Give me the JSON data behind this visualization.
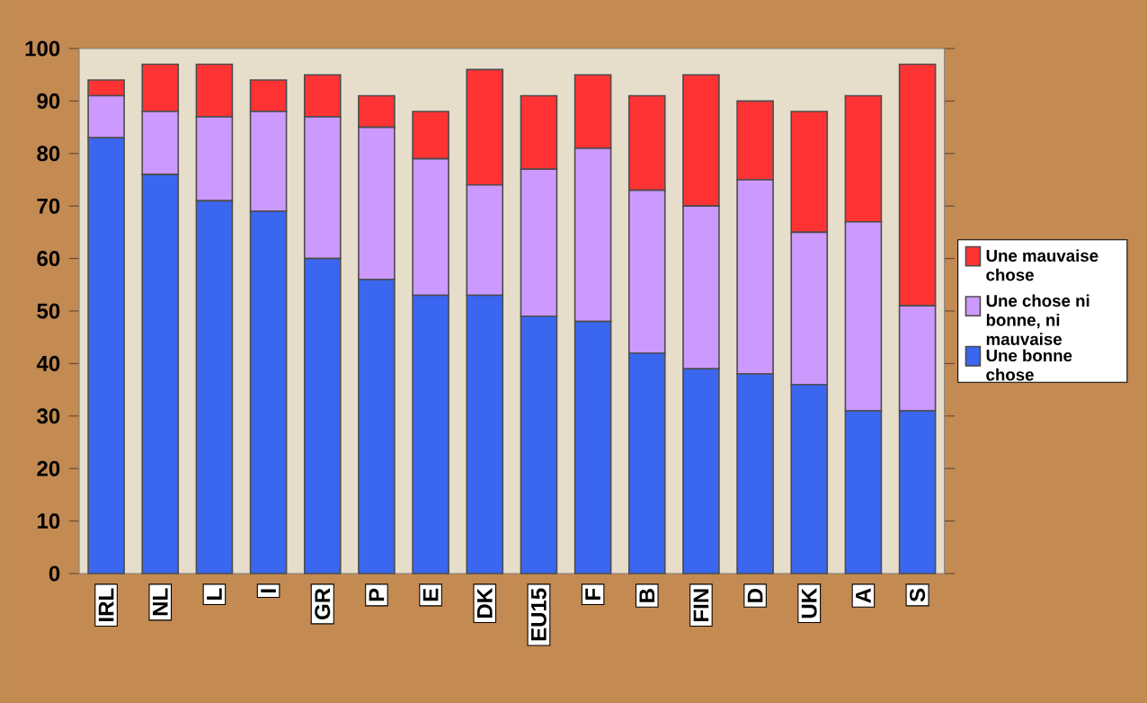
{
  "chart_data": {
    "type": "bar",
    "stacked": true,
    "categories": [
      "IRL",
      "NL",
      "L",
      "I",
      "GR",
      "P",
      "E",
      "DK",
      "EU15",
      "F",
      "B",
      "FIN",
      "D",
      "UK",
      "A",
      "S"
    ],
    "series": [
      {
        "name": "Une bonne chose",
        "color": "#3a66f0",
        "values": [
          83,
          76,
          71,
          69,
          60,
          56,
          53,
          53,
          49,
          48,
          42,
          39,
          38,
          36,
          31,
          31
        ]
      },
      {
        "name": "Une chose ni bonne, ni mauvaise",
        "color": "#cc99ff",
        "values": [
          8,
          12,
          16,
          19,
          27,
          29,
          26,
          21,
          28,
          33,
          31,
          31,
          37,
          29,
          36,
          20
        ]
      },
      {
        "name": "Une mauvaise chose",
        "color": "#ff3333",
        "values": [
          3,
          9,
          10,
          6,
          8,
          6,
          9,
          22,
          14,
          14,
          18,
          25,
          15,
          23,
          24,
          46
        ]
      }
    ],
    "ylim": [
      0,
      100
    ],
    "yticks": [
      0,
      10,
      20,
      30,
      40,
      50,
      60,
      70,
      80,
      90,
      100
    ],
    "legend": "right"
  }
}
